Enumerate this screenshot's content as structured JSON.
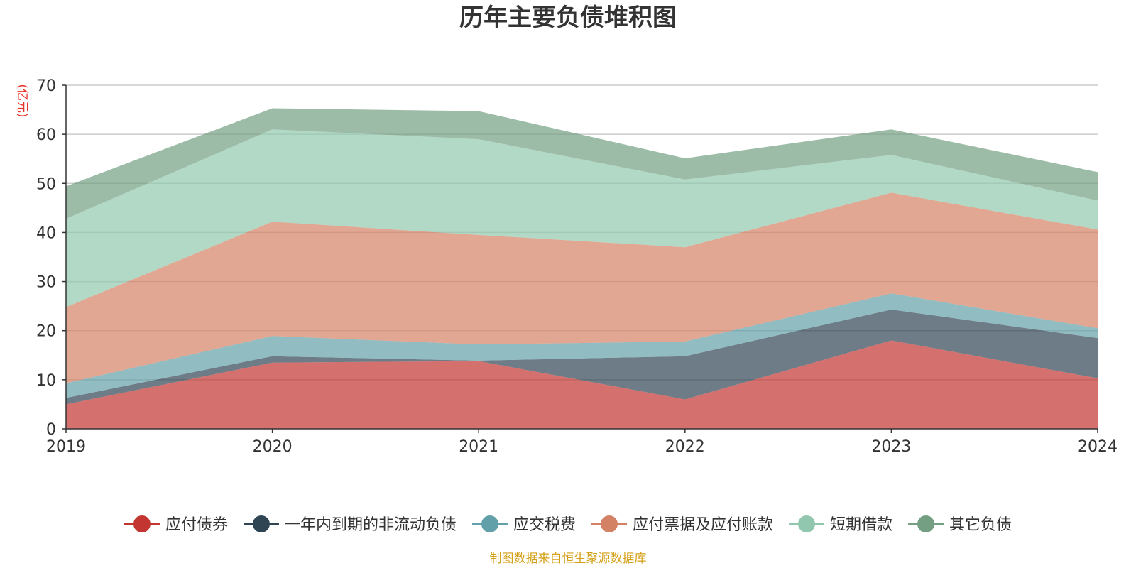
{
  "chart_data": {
    "type": "area",
    "stacked": true,
    "title": "历年主要负债堆积图",
    "unit_label": "(亿元)",
    "source": "制图数据来自恒生聚源数据库",
    "categories": [
      "2019",
      "2020",
      "2021",
      "2022",
      "2023",
      "2024"
    ],
    "ylim": [
      0,
      70
    ],
    "yticks": [
      0,
      10,
      20,
      30,
      40,
      50,
      60,
      70
    ],
    "grid": true,
    "legend_position": "bottom",
    "series": [
      {
        "name": "应付债券",
        "values": [
          5.0,
          13.5,
          13.8,
          6.0,
          18.0,
          10.3
        ],
        "color": "#c23531"
      },
      {
        "name": "一年内到期的非流动负债",
        "values": [
          1.3,
          1.3,
          0.1,
          8.8,
          6.3,
          8.2
        ],
        "color": "#2f4554"
      },
      {
        "name": "应交税费",
        "values": [
          3.0,
          4.1,
          3.3,
          3.0,
          3.3,
          2.0
        ],
        "color": "#61a0a8"
      },
      {
        "name": "应付票据及应付账款",
        "values": [
          15.5,
          23.3,
          22.3,
          19.2,
          20.5,
          20.1
        ],
        "color": "#d48265"
      },
      {
        "name": "短期借款",
        "values": [
          18.0,
          18.8,
          19.5,
          13.8,
          7.7,
          5.9
        ],
        "color": "#91c7ae"
      },
      {
        "name": "其它负债",
        "values": [
          6.6,
          4.3,
          5.7,
          4.3,
          5.2,
          5.8
        ],
        "color": "#749f83"
      }
    ]
  }
}
